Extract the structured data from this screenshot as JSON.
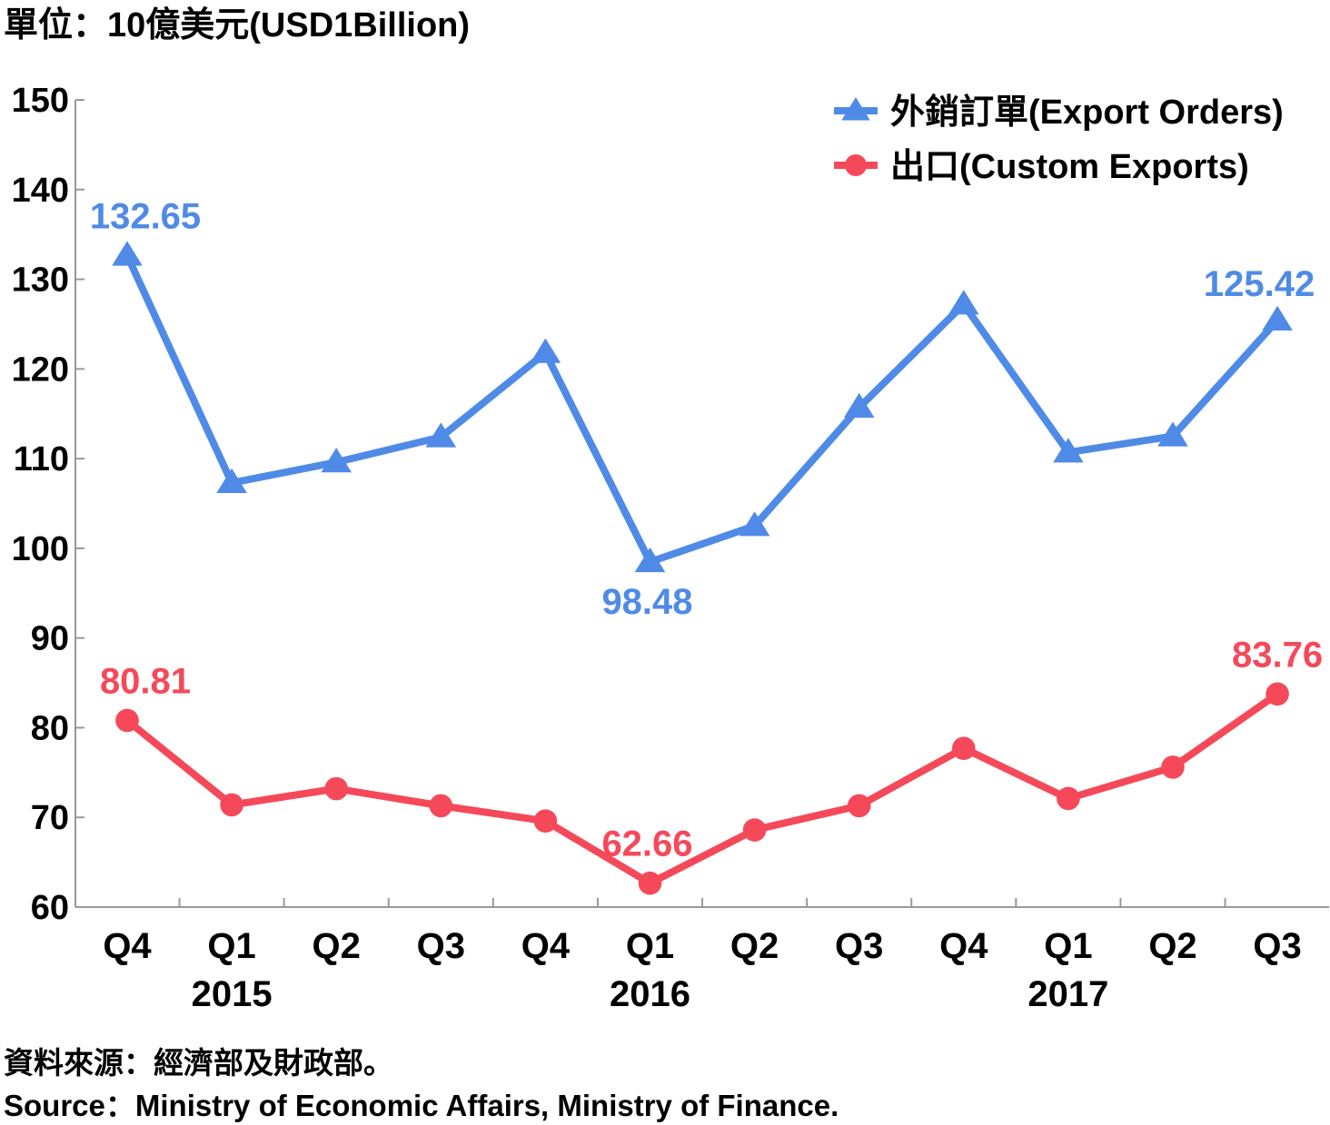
{
  "chart_data": {
    "type": "line",
    "unit_label": "單位：10億美元(USD1Billion)",
    "categories": [
      "Q4",
      "Q1",
      "Q2",
      "Q3",
      "Q4",
      "Q1",
      "Q2",
      "Q3",
      "Q4",
      "Q1",
      "Q2",
      "Q3"
    ],
    "year_labels": [
      {
        "index": 1,
        "label": "2015"
      },
      {
        "index": 5,
        "label": "2016"
      },
      {
        "index": 9,
        "label": "2017"
      }
    ],
    "ylim": [
      60,
      150
    ],
    "yticks": [
      60,
      70,
      80,
      90,
      100,
      110,
      120,
      130,
      140,
      150
    ],
    "legend_position": "top-right",
    "series": [
      {
        "name": "外銷訂單(Export Orders)",
        "color": "#4f8be6",
        "marker": "triangle",
        "values": [
          132.65,
          107.3,
          109.6,
          112.4,
          121.8,
          98.48,
          102.5,
          115.7,
          127.2,
          110.7,
          112.5,
          125.42
        ],
        "labeled": [
          {
            "index": 0,
            "label": "132.65"
          },
          {
            "index": 5,
            "label": "98.48"
          },
          {
            "index": 11,
            "label": "125.42"
          }
        ]
      },
      {
        "name": "出口(Custom Exports)",
        "color": "#f5495a",
        "marker": "circle",
        "values": [
          80.81,
          71.4,
          73.2,
          71.3,
          69.6,
          62.66,
          68.6,
          71.3,
          77.7,
          72.1,
          75.6,
          83.76
        ],
        "labeled": [
          {
            "index": 0,
            "label": "80.81"
          },
          {
            "index": 5,
            "label": "62.66"
          },
          {
            "index": 11,
            "label": "83.76"
          }
        ]
      }
    ],
    "source_zh": "資料來源：經濟部及財政部。",
    "source_en": "Source：Ministry of Economic Affairs, Ministry of Finance."
  }
}
